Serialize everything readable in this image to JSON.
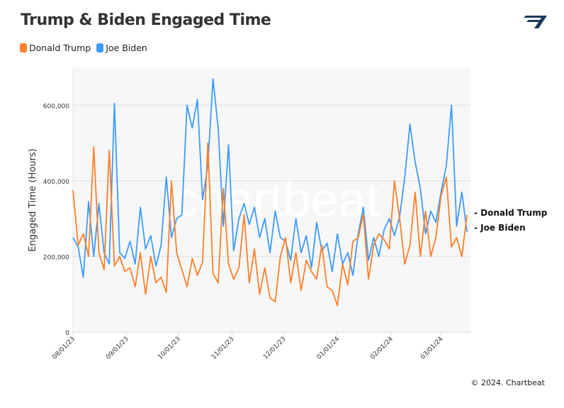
{
  "chart_data": {
    "type": "line",
    "title": "Trump & Biden Engaged Time",
    "xlabel": "",
    "ylabel": "Engaged Time (Hours)",
    "ylim": [
      0,
      700000
    ],
    "yticks": [
      0,
      200000,
      400000,
      600000
    ],
    "ytick_labels": [
      "0",
      "200,000",
      "400,000",
      "600,000"
    ],
    "xticks": [
      "2023-08-01",
      "2023-09-01",
      "2023-10-01",
      "2023-11-01",
      "2023-12-01",
      "2024-01-01",
      "2024-02-01",
      "2024-03-01"
    ],
    "xtick_labels": [
      "08/01/23",
      "09/01/23",
      "10/01/23",
      "11/01/23",
      "12/01/23",
      "01/01/24",
      "02/01/24",
      "03/01/24"
    ],
    "xlim": [
      "2023-08-01",
      "2024-03-18"
    ],
    "grid": true,
    "legend": "top-left",
    "x": [
      "2023-08-01",
      "2023-08-04",
      "2023-08-07",
      "2023-08-10",
      "2023-08-13",
      "2023-08-16",
      "2023-08-19",
      "2023-08-22",
      "2023-08-25",
      "2023-08-28",
      "2023-08-31",
      "2023-09-03",
      "2023-09-06",
      "2023-09-09",
      "2023-09-12",
      "2023-09-15",
      "2023-09-18",
      "2023-09-21",
      "2023-09-24",
      "2023-09-27",
      "2023-09-30",
      "2023-10-03",
      "2023-10-06",
      "2023-10-09",
      "2023-10-12",
      "2023-10-15",
      "2023-10-18",
      "2023-10-21",
      "2023-10-24",
      "2023-10-27",
      "2023-10-30",
      "2023-11-02",
      "2023-11-05",
      "2023-11-08",
      "2023-11-11",
      "2023-11-14",
      "2023-11-17",
      "2023-11-20",
      "2023-11-23",
      "2023-11-26",
      "2023-11-29",
      "2023-12-02",
      "2023-12-05",
      "2023-12-08",
      "2023-12-11",
      "2023-12-14",
      "2023-12-17",
      "2023-12-20",
      "2023-12-23",
      "2023-12-26",
      "2023-12-29",
      "2024-01-01",
      "2024-01-04",
      "2024-01-07",
      "2024-01-10",
      "2024-01-13",
      "2024-01-16",
      "2024-01-19",
      "2024-01-22",
      "2024-01-25",
      "2024-01-28",
      "2024-01-31",
      "2024-02-03",
      "2024-02-06",
      "2024-02-09",
      "2024-02-12",
      "2024-02-15",
      "2024-02-18",
      "2024-02-21",
      "2024-02-24",
      "2024-02-27",
      "2024-03-01",
      "2024-03-04",
      "2024-03-07",
      "2024-03-10",
      "2024-03-13",
      "2024-03-16"
    ],
    "series": [
      {
        "name": "Donald Trump",
        "color": "#ff7f2a",
        "end_label": "- Donald Trump",
        "values": [
          375000,
          230000,
          260000,
          200000,
          490000,
          210000,
          165000,
          480000,
          175000,
          200000,
          160000,
          170000,
          120000,
          210000,
          100000,
          200000,
          130000,
          145000,
          105000,
          400000,
          210000,
          165000,
          120000,
          195000,
          150000,
          185000,
          500000,
          155000,
          130000,
          380000,
          180000,
          140000,
          170000,
          310000,
          130000,
          220000,
          100000,
          170000,
          90000,
          80000,
          200000,
          250000,
          130000,
          210000,
          110000,
          190000,
          160000,
          140000,
          230000,
          120000,
          110000,
          70000,
          180000,
          125000,
          240000,
          250000,
          310000,
          140000,
          230000,
          260000,
          245000,
          220000,
          400000,
          300000,
          180000,
          230000,
          370000,
          200000,
          320000,
          200000,
          250000,
          360000,
          410000,
          225000,
          250000,
          200000,
          310000
        ]
      },
      {
        "name": "Joe Biden",
        "color": "#3d9bff",
        "end_label": "- Joe Biden",
        "values": [
          250000,
          225000,
          145000,
          345000,
          200000,
          340000,
          210000,
          180000,
          605000,
          210000,
          195000,
          240000,
          180000,
          330000,
          220000,
          255000,
          175000,
          230000,
          410000,
          250000,
          300000,
          310000,
          600000,
          540000,
          615000,
          350000,
          440000,
          670000,
          540000,
          280000,
          495000,
          215000,
          300000,
          340000,
          285000,
          330000,
          250000,
          300000,
          210000,
          320000,
          250000,
          240000,
          190000,
          300000,
          210000,
          255000,
          170000,
          290000,
          215000,
          235000,
          160000,
          260000,
          180000,
          210000,
          150000,
          260000,
          330000,
          190000,
          250000,
          200000,
          270000,
          300000,
          255000,
          305000,
          410000,
          550000,
          450000,
          380000,
          260000,
          320000,
          290000,
          370000,
          440000,
          600000,
          280000,
          370000,
          265000
        ]
      }
    ]
  },
  "watermark": "chartbeat",
  "footer": "© 2024. Chartbeat",
  "logo": "Chartbeat"
}
